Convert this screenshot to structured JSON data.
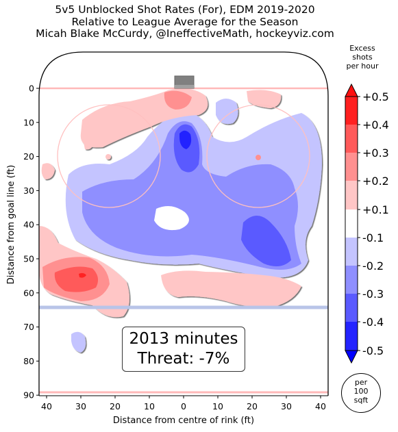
{
  "title": {
    "line1": "5v5 Unblocked Shot Rates (For), EDM 2019-2020",
    "line2": "Relative to League Average for the Season",
    "line3": "Micah Blake McCurdy, @IneffectiveMath, hockeyviz.com"
  },
  "annotation": {
    "minutes": "2013 minutes",
    "threat": "Threat: -7%"
  },
  "colorbar": {
    "title_line1": "Excess",
    "title_line2": "shots",
    "title_line3": "per hour",
    "ticks": [
      "+0.5",
      "+0.4",
      "+0.3",
      "+0.2",
      "+0.1",
      "-0.1",
      "-0.2",
      "-0.3",
      "-0.4",
      "-0.5"
    ],
    "colors": [
      "#ff2020",
      "#ff5a5a",
      "#ff9090",
      "#ffc6c6",
      "#ffffff",
      "#c4c4ff",
      "#8f8fff",
      "#5a5aff",
      "#2424ff"
    ],
    "unit_line1": "per",
    "unit_line2": "100",
    "unit_line3": "sqft"
  },
  "chart_data": {
    "type": "heatmap",
    "xlabel": "Distance from centre of rink (ft)",
    "ylabel": "Distance from goal line (ft)",
    "xlim": [
      -42,
      42
    ],
    "ylim": [
      90,
      -10
    ],
    "xticks": [
      "40",
      "30",
      "20",
      "10",
      "0",
      "10",
      "20",
      "30",
      "40"
    ],
    "yticks": [
      "0",
      "10",
      "20",
      "30",
      "40",
      "50",
      "60",
      "70",
      "80",
      "90"
    ],
    "rink_colors": {
      "goal_line": "#ffb8b8",
      "blue_line": "#b8c4e8",
      "faceoff": "#ffc0c0",
      "net": "#808080"
    },
    "regions": [
      {
        "level": -0.1,
        "color": "#c4c4ff",
        "label": "main blue region slot and high zone"
      },
      {
        "level": -0.2,
        "color": "#8f8fff",
        "label": "central lower slot"
      },
      {
        "level": -0.3,
        "color": "#5a5aff",
        "label": "right point area"
      },
      {
        "level": -0.4,
        "color": "#2424ff",
        "label": "crease"
      },
      {
        "level": 0.1,
        "color": "#ffc6c6",
        "label": "left low slot and behind net"
      },
      {
        "level": 0.3,
        "color": "#ff9090",
        "label": "left point"
      },
      {
        "level": 0.5,
        "color": "#ff2020",
        "label": "left point core"
      }
    ]
  }
}
